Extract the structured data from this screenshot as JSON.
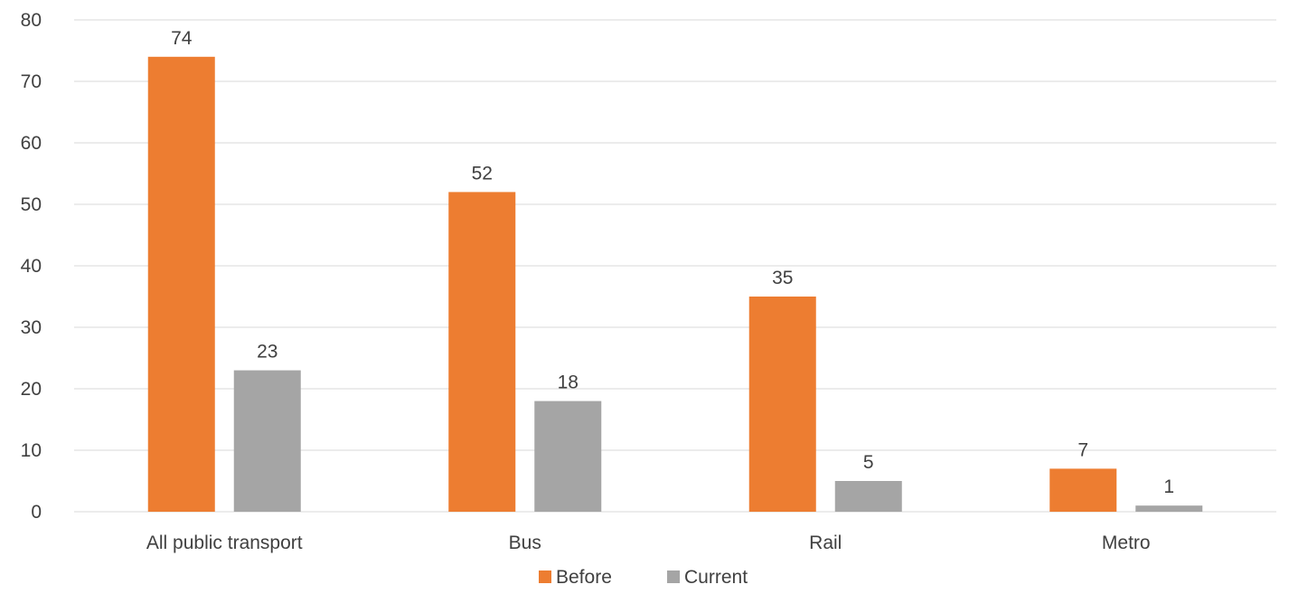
{
  "chart_data": {
    "type": "bar",
    "categories": [
      "All public transport",
      "Bus",
      "Rail",
      "Metro"
    ],
    "series": [
      {
        "name": "Before",
        "values": [
          74,
          52,
          35,
          7
        ],
        "data_labels": [
          "74",
          "52",
          "35",
          "7"
        ],
        "color": "#ED7D31"
      },
      {
        "name": "Current",
        "values": [
          23,
          18,
          5,
          1
        ],
        "data_labels": [
          "23",
          "18",
          "5",
          "1"
        ],
        "color": "#A5A5A5"
      }
    ],
    "ylim": [
      0,
      80
    ],
    "yticks": [
      0,
      10,
      20,
      30,
      40,
      50,
      60,
      70,
      80
    ],
    "ytick_labels": [
      "0",
      "10",
      "20",
      "30",
      "40",
      "50",
      "60",
      "70",
      "80"
    ],
    "title": "",
    "xlabel": "",
    "ylabel": "",
    "grid": true,
    "legend_position": "bottom",
    "gridline_color": "#D9D9D9"
  }
}
